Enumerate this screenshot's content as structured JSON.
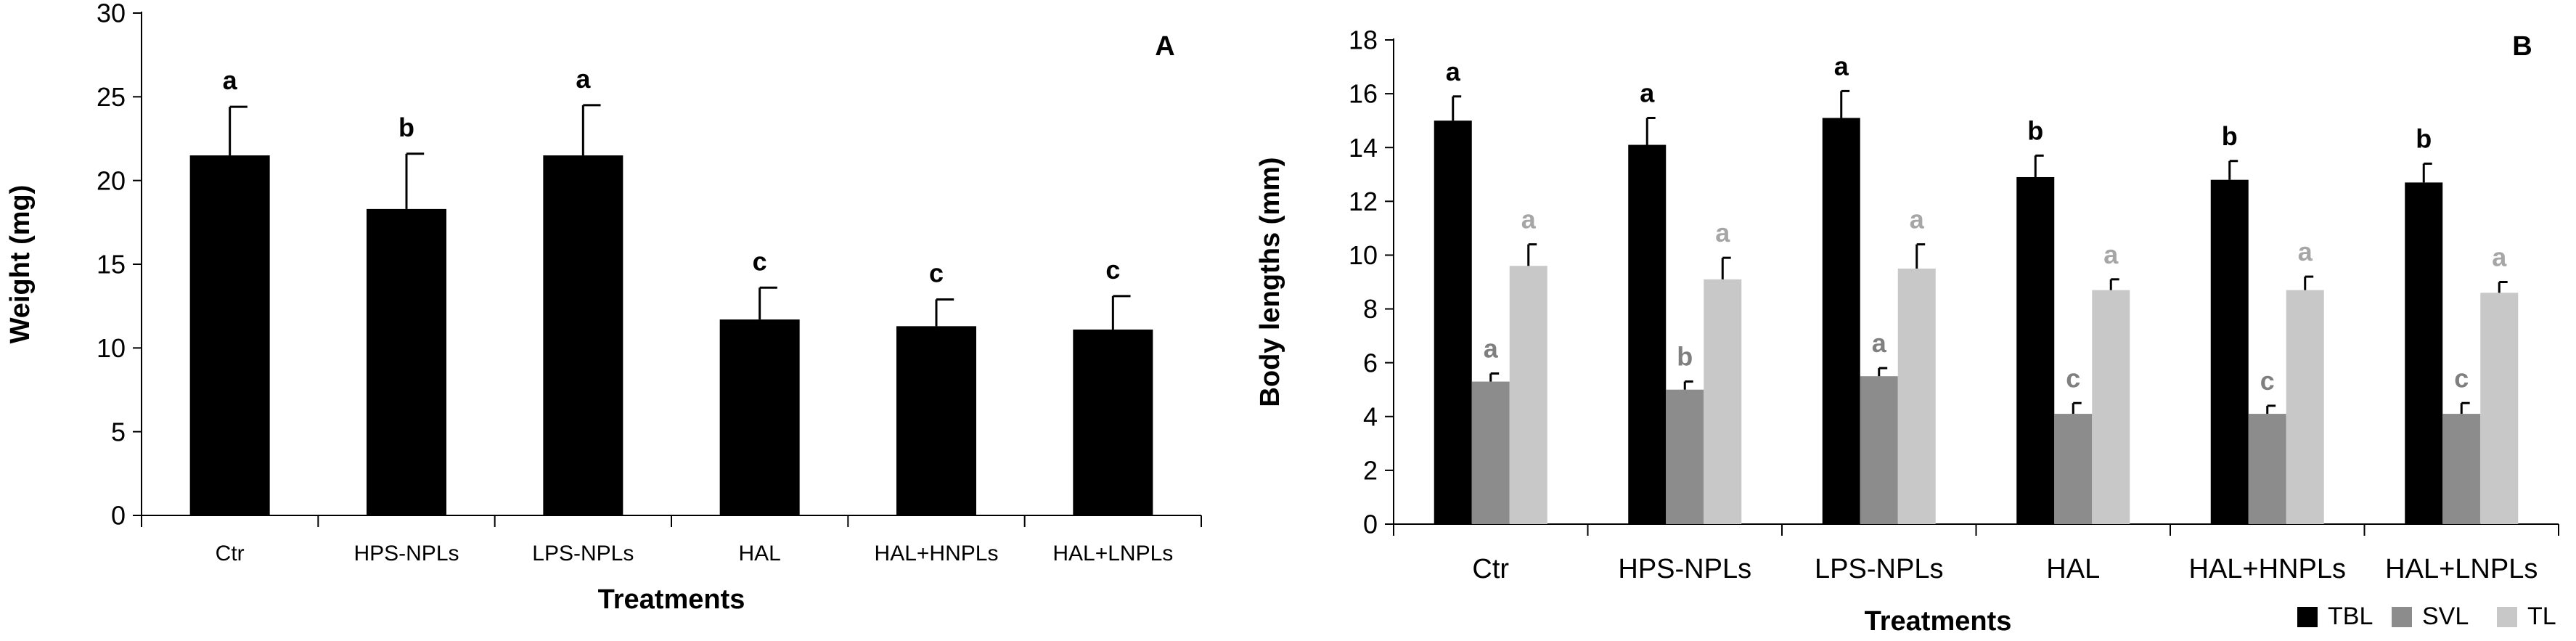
{
  "chart_data": [
    {
      "type": "bar",
      "panel_label": "A",
      "xlabel": "Treatments",
      "ylabel": "Weight (mg)",
      "ylim": [
        0,
        30
      ],
      "yticks": [
        0,
        5,
        10,
        15,
        20,
        25,
        30
      ],
      "grid": false,
      "categories": [
        "Ctr",
        "HPS-NPLs",
        "LPS-NPLs",
        "HAL",
        "HAL+HNPLs",
        "HAL+LNPLs"
      ],
      "series": [
        {
          "color": "#000000",
          "values": [
            21.5,
            18.3,
            21.5,
            11.7,
            11.3,
            11.1
          ],
          "errors": [
            2.9,
            3.3,
            3.0,
            1.9,
            1.6,
            2.0
          ],
          "letters": [
            "a",
            "b",
            "a",
            "c",
            "c",
            "c"
          ],
          "letter_color": "#000000"
        }
      ]
    },
    {
      "type": "bar",
      "panel_label": "B",
      "xlabel": "Treatments",
      "ylabel": "Body lengths (mm)",
      "ylim": [
        0,
        18
      ],
      "yticks": [
        0,
        2,
        4,
        6,
        8,
        10,
        12,
        14,
        16,
        18
      ],
      "grid": false,
      "legend_position": "bottom-right",
      "categories": [
        "Ctr",
        "HPS-NPLs",
        "LPS-NPLs",
        "HAL",
        "HAL+HNPLs",
        "HAL+LNPLs"
      ],
      "series": [
        {
          "name": "TBL",
          "color": "#000000",
          "values": [
            15.0,
            14.1,
            15.1,
            12.9,
            12.8,
            12.7
          ],
          "errors": [
            0.9,
            1.0,
            1.0,
            0.8,
            0.7,
            0.7
          ],
          "letters": [
            "a",
            "a",
            "a",
            "b",
            "b",
            "b"
          ],
          "letter_color": "#000000"
        },
        {
          "name": "SVL",
          "color": "#8c8c8c",
          "values": [
            5.3,
            5.0,
            5.5,
            4.1,
            4.1,
            4.1
          ],
          "errors": [
            0.3,
            0.3,
            0.3,
            0.4,
            0.3,
            0.4
          ],
          "letters": [
            "a",
            "b",
            "a",
            "c",
            "c",
            "c"
          ],
          "letter_color": "#7f7f7f"
        },
        {
          "name": "TL",
          "color": "#c8c8c8",
          "values": [
            9.6,
            9.1,
            9.5,
            8.7,
            8.7,
            8.6
          ],
          "errors": [
            0.8,
            0.8,
            0.9,
            0.4,
            0.5,
            0.4
          ],
          "letters": [
            "a",
            "a",
            "a",
            "a",
            "a",
            "a"
          ],
          "letter_color": "#a6a6a6"
        }
      ]
    }
  ]
}
